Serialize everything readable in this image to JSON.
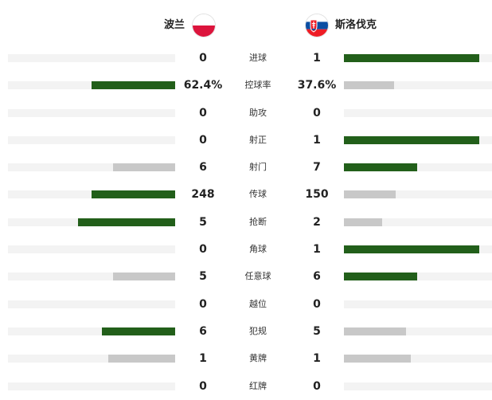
{
  "teams": {
    "home": {
      "name": "波兰",
      "flag_icon": "poland-flag-icon"
    },
    "away": {
      "name": "斯洛伐克",
      "flag_icon": "slovakia-flag-icon"
    }
  },
  "colors": {
    "winner_bar": "#225f1a",
    "loser_bar": "#c8c8c8",
    "track": "#f3f3f3"
  },
  "stats": [
    {
      "label": "进球",
      "home": "0",
      "away": "1",
      "home_share": 0.0,
      "away_share": 0.81,
      "leader": "away"
    },
    {
      "label": "控球率",
      "home": "62.4%",
      "away": "37.6%",
      "home_share": 0.5,
      "away_share": 0.3,
      "leader": "home"
    },
    {
      "label": "助攻",
      "home": "0",
      "away": "0",
      "home_share": 0.0,
      "away_share": 0.0,
      "leader": "none"
    },
    {
      "label": "射正",
      "home": "0",
      "away": "1",
      "home_share": 0.0,
      "away_share": 0.81,
      "leader": "away"
    },
    {
      "label": "射门",
      "home": "6",
      "away": "7",
      "home_share": 0.37,
      "away_share": 0.44,
      "leader": "away"
    },
    {
      "label": "传球",
      "home": "248",
      "away": "150",
      "home_share": 0.5,
      "away_share": 0.31,
      "leader": "home"
    },
    {
      "label": "抢断",
      "home": "5",
      "away": "2",
      "home_share": 0.58,
      "away_share": 0.23,
      "leader": "home"
    },
    {
      "label": "角球",
      "home": "0",
      "away": "1",
      "home_share": 0.0,
      "away_share": 0.81,
      "leader": "away"
    },
    {
      "label": "任意球",
      "home": "5",
      "away": "6",
      "home_share": 0.37,
      "away_share": 0.44,
      "leader": "away"
    },
    {
      "label": "越位",
      "home": "0",
      "away": "0",
      "home_share": 0.0,
      "away_share": 0.0,
      "leader": "none"
    },
    {
      "label": "犯规",
      "home": "6",
      "away": "5",
      "home_share": 0.44,
      "away_share": 0.37,
      "leader": "home"
    },
    {
      "label": "黄牌",
      "home": "1",
      "away": "1",
      "home_share": 0.4,
      "away_share": 0.4,
      "leader": "none"
    },
    {
      "label": "红牌",
      "home": "0",
      "away": "0",
      "home_share": 0.0,
      "away_share": 0.0,
      "leader": "none"
    }
  ]
}
